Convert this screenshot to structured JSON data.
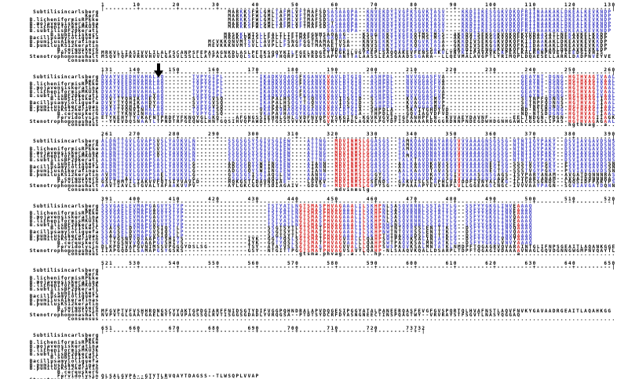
{
  "alignment": {
    "names": [
      "Subtilisincarlsberg",
      "KerA",
      "B.licheniformisRPkke",
      "B.mojavensiskeratina",
      "B.licheniformisMKU3k",
      "B.subtilisBF20kerati",
      "B.subtiliskerC",
      "Bacillusamyloliquefa",
      "B.pumilusA1keratinas",
      "B.pumilusKS12keratin",
      "B.cereuskerG",
      "Fervidolysin",
      "Stenotrophomonasmalt",
      "Consensus"
    ],
    "palette": {
      "conserved": "#d01010",
      "similar": "#3a3ac2",
      "default": "#000000",
      "ruler": "#000000"
    },
    "thresholds": {
      "conserved_count": 13,
      "similar_count": 6
    },
    "arrow": {
      "block_index": 1,
      "column": 145
    },
    "total_length": 732,
    "blocks": [
      {
        "start": 1,
        "end": 130,
        "rows": [
          "                                MARKKSFWLGMLTAFMLVFTMAFSDSASAAQPA--KNVEKDYIVGFKSGVKTASV----KKDIIKESGGKVDKQFRIINAAKAKLDKEALKEVKNDP",
          "                                MARKKSFWLGMLTAFMLVFTMAFSDSASAAQPA--KNVEKDYIVGFKSGVKTASV----KKDIIKESGGKVDKQFRIINAAKAKLDKEALKEVKNDP",
          "                                MARKKSFWLGMLTAFMLVFTMAFSDSASAAQPA--KNVEKDYIVGFKSGVKTASV----KKDIIKESGGKVDKQFRIINAAKAKLDKEALKEVKNDP",
          "                                MARKKSFWLGMLTAFMLVFTMAFSDSTSAAQPA--KNVEKDYIVGFKSGVKTASV----KKDIIKESGGKVDKQFRIINAAKAKLDKEALKEVKNDP",
          "                                MARKKSFWLGMLTAFMLVFTMAFSDSASAAQPA--KNVEKDYIVGFKSGVKTASV----KKDIIKESGGKVDKQFRIINAAKAKLDKEALKEVKNDP",
          "                                                         SASAAQPA--KNVEKDYIVGFKSGVKTASV----KKDIIKESGGKVDKQFRIINAAKAKLDKEALKEVKNDP",
          "                               MRSKKLWISLLFALTLIFTMAFGNMSAQAAG----KSNGEKKYIVGFKQTMSTMSS--AKKDVISEKGGKVQKQFKYVDAASATLNEKAVKELKKDP",
          "                               MRGKKVWISLLFALTLIFTMAFGSTSSAQAA----KSSTEKKYIVGFKQTMSTMSS--AKKDVISEKGGKVQKQFKYVDAASATLNEKAVKELKKDP",
          "                           MCVKKQNVMTSVLLAVPLLFSNGFGGTMAMAETVSA---KNVSEKKYIVGFKQGVKTASA--GKKDIVSEKGGKVDKQFKIIDAAKAKLDKEAVKEVKKDP",
          "                           MEVKKKNVMTSVLLAVPLLFSAGFGGTMAMAETVSA---KNVSEKKYIVGFKQGVKTASA--GKKDIVSEKGGKVDKQFKIIDAAKAKLDKEAVKEVKKDP",
          "                                                        SSNQAA----KSVSEKKYIVGFKSGVKSASA--GKKDIVSENGGKVDKQFKIINAAKAKLDKEAVKEVKKDP",
          "MRKVLLIASIVVLILALFSCANPSFEPASAGNKDLASLPETKSQQYKILFGELRDGEYTEGKILVGYKEPLSAQQAKEVFENSGAKVLYNYKIIPAVAVKLKPEALKALRNNPNVEYIEEDGIVHIS",
          "MSQVTQPRVRRVHVVLGASVLSSLLLATPALAGDVQLSGLQSAPTHQRFIVKYRDGSAPVANTTALAASSLEASGAADSSGARA--LLQEVMALAVGPTLYRIMQPLDQAESELLARKLDADPNVEYVE"
        ]
      },
      {
        "start": 131,
        "end": 260,
        "rows": [
          "DVAYVEEDHVAHALAQ-------TVPYGIPL---------IKADKVQAQGFKGANVKVAVLDTGIQ--ASHPDL---NVVGGASFVA-------------------GEAYNT-DGNG-HGTHVAGTVAAL",
          "DVAYVEEDHVAHALAQ-------TVPYGIPL---------IKADKVQAQGFKGANVKVAVLDTGIQ--ASHPDL---NVVGGASFVA-------------------GEAYNT-DGNG-HGTHVAGTVAAL",
          "DVAYVEEDHVAHALAQ-------TVPYGIPL---------IKADKVQAQGFKGANVKVAVLDTGIQ--ASHPDL---NVVGGASFVA-------------------GEAYNT-DGNG-HGTHVAGTVAAL",
          "DVAYVEEDHVAHALAQ-------TVPYGIPL---------IKADKVQAQGYKGANVKVAVLDTGIQ--ASHPDL---NVVGGASFVA-------------------GEAYNT-DGNG-HGTHVAGTVAAL",
          "DVAYVEEDHVAHALAQ-------TVPYGIPL---------IKADKVQAQGFKGANVKVAVLDTGIQ--ASHPDL---NVVGGASFVA-------------------GEAYNT-DGNG-HGTHVAGTVAAL",
          "DVAYVEEDHVAHAYAQ-------TVPYGIPL---------IKADKVQAQGFKGANVKVAVLDTGIQ--ASHPDL---NVVGGASFVP-------------------GEAYNT-DGNG-HGTHVAGTVAAL",
          "DVVYTYQHIKAHEYAQ-------SVPYGVSQ---------IKAPALHSQGYTGQNVKVAVIDSGID--SSHPDL---KVAGGASMVP-------------------SETNPFQDNNS-HGTHVAGTIAAL",
          "DVVYTYQHIKAHDYAQ-------SVPYGVSQ---------IKAPALHSQGYTGQNVKVAVIDSGID--SSHPDL---KVAGGASMVP-------------------SETNPFQDNNS-HGTHVAGTIAAL",
          "DVVYTYQHIKAHEYAQ-------SVPYGVSQ---------IKAPALHSQGYKGSNVKVAVIDSGID--SSHPDL---KVAGGASMVP-------------------SETNPFQDNNS-HGTHVAGTIAAL",
          "DVAYTYQNVINHALAQ-------TVPYGISQ---------VKAPAVHAQGYKGANVKVAVLDTGIA--SHPDLA---SKVIYGHDYVD------------------ND-NTSDDGNG-HGTHVAGTIAAL",
          "DVAYTYKNVINHALAQ-------TVPYGISQ---------VKAPAVHAQGYKGANVKVAVLDTGIA--THPDLE---GQVIAGYDFVD------------------ND-NTSDDGNG-HGTHVAGTIAAL",
          "ETYKEHYTYVKAFNTPRDFYFKNQYGLGKQ----AFGNGSSIEHHLGHLGVDFNVQPVYSKGITG-KGVKVGVIDTGFANHPFLN--KVVAEYDAVNF------EELTNDGN-PDGN-HGTHVAGIIAGK",
          "--YVEVDQSNAATLTPNDTRFGEQWGLHNTGQSIHVQPAWDITTGSSSVVVAVIDTGVRYTHPDLAGKVLPGYDFISDAAAARDGGGRDNNPNDEGDWHDGNHGAWLCGSGSLIPAS-HGTHVAGAGAAL"
        ]
      },
      {
        "start": 261,
        "end": 390,
        "rows": [
          "ALDNTTGVLGVAPSVSLYAVKVLN--------SSGSGSYSGIVSGIEW----ATTNG--MDVINMSLGGASGS--TAMKQAVDNAYARGVVVVAAAGNSGSSG-NTNTIGYPAKY--DSVIAVGAVDSNS",
          "ALDNTTGVLGVAPSVSLYAVKVLN--------SSGSGSYSGIVSGIEW----ATTNG--MDVINMSLGGASGS--TAMKQAVDNAYARGVVVVAAAGNSGSSG-NTNTIGYPAKY--DSVIAVGAVDSNS",
          "ALDNTTGVLGVAPSVSLYAVKVLN--------SSGSGSYSGIVSGIEW----ATTNG--MDVINMSLGGASGS--TAMKQAVDNAYARGVVVVAAAGNSGSSG-NTNTIGYPAKY--DSVIAVGAVDSNS",
          "ALDNTTGVLGVAPSVSLYAVKVLN--------SSGSGSYSGIVSGIEW----ATTNG--MDVINMSLGGASGS--TALKQAVDNAYARGVVVVAAAGNSGSSG-NTNTIGYPAKY--DSVIAVGAVDSNS",
          "ALDNTTGVLGVAPSVSLYAVKVLN--------SSGSGSYSGIVSGIEW----ATTNG--MDVINMSLGGASGS--TAMKQAVDNAYARGVVVVAAAGNSGSSG-NTNTIGYPAKY--DSVIAVGAVDSNS",
          "ALDNTTGVLGVAPSASLYAVKVLN--------SSGSGSYSGIVSGIEW----ATTNG--MDVINMSLGGASGS--TALKTAVDNAYARGVVVVAAAGNSGSSG-NTNTIGYPAKY--DSVIAVGAVDSNS",
          "ALDNTTGVLGVAPSASLYAVKVLG--------ADGSGQYSWIINGIEW----AIANN--MDVINMSLGGASGS--AALKAAVDKAVASGVVVVAAAGNEGTSG-SSSTVGYPGKY--PSVIAVGAVDSSN",
          "ALDNTTGVLGVAPSASLYAVKVLG--------ADGSGQYSWIINGIEW----AIANN--MDVINMSLGGASGS--AALKAAVDKAVASGVVVVAAAGNEGTSG-SSSTVGYPGKY--PSVIAVGAVDSSN",
          "ALDNTTGVLGVAPSASLYAVKVLG--------ADGSGQYSWIINGIEW----AIANN--MDVINMSLGGASGS--AALKAAVDTAVASGVVVVAAAGNEGTSG-SSSTVGYPGKY--PSVIAVGAVDSSN",
          "AVDNTTGVLGVAPSAELYAVKVLG--------GSGSGSISGIAQGLEW----AANNG--MDVINMSLGGGYGS--TALKQAVDKAYASGIVVVAASGNSGAGS-ISYPARYANAM--AVGATDQNNNRAS",
          "AVDNTTAVLGVAPSAELYAVKVLG--------GSGSGSISGIAQGLEW----AANNG--MDVINMSLGGGYGS--TALKQAVDKAYASGIVVVAASGNSGAGS-ISYPARYANAM--AVGATDQNNNRAS",
          "GSLTHMTILIAKVVFQTSIYVAVLD-------HQKGSTLDAVNQIAE-----LGVKV--MDVINMSLGSENDS--GAKVISLSLAPHLVAVDDFIVNYALEKG-ILIVASSGNDG--LNQSIDFPARYPS",
          "AAVTIAVLSTGVALTAFAAKVVPV--------AYLGKCGGYTSDIAGAIV--GDGTG--MDVINMSLGGPYSG--VPAAAAPYEVINAPLVLLGGEAGSCNGC-IVVVAAYPAGN--SGVIAVGATDQNN"
        ]
      },
      {
        "start": 391,
        "end": 520,
        "rows": [
          "SSVGAELEVMAPGAGVYSTYP---------------------TSTYATLNGTSMASPHVAGAAALILSKHPNLSASQVRNRLSSTATYLG--SSFYYGKGLINVEAAAQ",
          "SSVGAELEVMAPGAGVYSTYP---------------------TSTYATLNGTSMASPHVAGAAALILSKHPNLSASQVRNRLSSTATYLG--SSFYYGKGLINVEAAAQ",
          "SSVGAELEVMAPGAGVYSTYP---------------------TSTYATLNGTSMASPHVAGAAALILSKHPNLSASQVRNRLSSTATYLG--SSFYYGKGLINVEAAAQ",
          "SSVGAELEVMAPGAGVYSTYP---------------------TSTYATLNGTSMASPHVAGAAALILSKHPNLSASQVRNRLSSTATYLG--SSFYYGKGLINVQAAAQ",
          "SSVGAELEVMAPGAGVYSTYP---------------------TSTYATLNGTSMASPHVAGAAALILSKHPNLSASQVRNRLSSTATYLG--SSFYYGKGLINVEAAAQ",
          "SSVGAELEVMAPGVGVYSTYP---------------------TSTYATLNGTSMASPHVAGAAALILSKHPNWSNSQVRNRLSSTATYLG--SSFYYGKGLINVEAAAQ",
          "SSAGSELDVMAPGVSIQSTLP---------------------SSGTSYTLGTSMATPHVAGAAALILSKHPNWTNTQVRSSLENTTTKLG--DSFYYGKGLINVQAAAQ",
          "SSAGSELDVMAPGVSIQSTLP---------------------SSGTSYTLGTSMATPHVAGAAALILSKHPNWTNTQVRSSLENTTTKLG--DSFYYGKGLINVQAAAQ",
          "SSAGSELDVMAPGVSIQSTLP---------------------SSGTSYTLGTSMATPHVAGAAALILSKHPTWTNAQVRDSLENTTTKLG--DSFYYGKGLINVQAAAQ",
          "SSTYGSNVVQAAAPGVSHIYS----------------IYK--GGTYQSLSGTSMATPHVAGVAALLLQAHPSWTPAQVKSALINTATKLG--DSFYYGKGLVNVYAAAQ",
          "SSTYGSNVVQAAAPGVSHIYS----------------IYK--GGTYQSLSGTSMATPHVAGVAALLLQAHPSWTPAQVKSALMNTATKLG--DSFYYGKGLVNVYAAAQ",
          "DLKPDIVAPGVNIMSSVPGGGYDSLSG----------TSY--ATAYVSLSGTSMASPHVAGVVALLLQAHPSWSPAQVKSALMNTATKLNMDPFTQGAGRVQVARAINTGLIFNPSGEAITLAQANKGGE",
          "IIAPGQDILSAMAPGSYGSKS----------------GSY--NTGITTPGGTSMATPHVAGVSAVYLQAHP-NLSAAQVKQALLDSARPLTDPFTQGAGIVDAAAAVNAGLGQVDGNNGWGMPNVQAYTL"
        ]
      },
      {
        "start": 521,
        "end": 650,
        "rows": [
          "",
          "",
          "",
          "",
          "",
          "",
          "",
          "",
          "",
          "",
          "",
          "MFGVPTVFVSHHRQNGSCYYAKTGPDGIARFFNIDSGTYDIFVGGPQHNDRALAPVDQGESIPGGYATALPANEERQASFEVGFGVSPQRTQLHVAFNSTLAQVFNVKYGAVAADRGEAITLAQAHKGG",
          "NVPVTGLGAATGAELNYTVAVPAGSSQLRVTISGGSGDADLYVRQGSA--PTDTSYDCRFDYASNGNEECTINSPQAGTWY--VRVRAYSTFSGVTLNASYQGGAQ"
        ]
      },
      {
        "start": 651,
        "end": 732,
        "rows": [
          "",
          "",
          "",
          "",
          "",
          "",
          "",
          "",
          "",
          "",
          "",
          "QLSALGVPA--GTYTLRVQAYTDAGSS--TLWSQPLVVAP",
          "GLSAAQLAQVRSTLAGW"
        ]
      }
    ]
  }
}
